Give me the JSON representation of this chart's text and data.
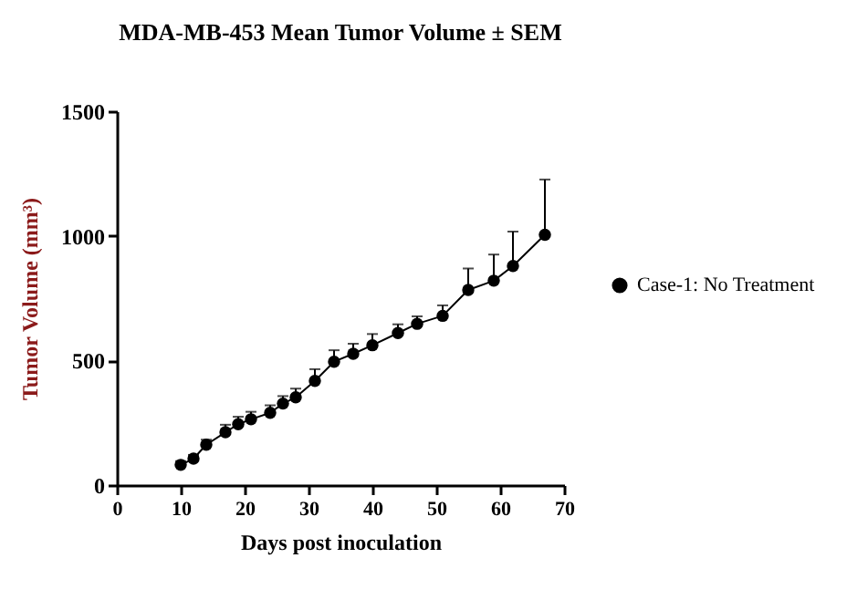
{
  "chart_data": {
    "type": "line",
    "title": "MDA-MB-453 Mean Tumor Volume ± SEM",
    "xlabel": "Days post inoculation",
    "ylabel": "Tumor Volume (mm³)",
    "x": [
      10,
      12,
      14,
      17,
      19,
      21,
      24,
      26,
      28,
      31,
      34,
      37,
      40,
      44,
      47,
      51,
      55,
      59,
      62,
      67
    ],
    "series": [
      {
        "name": "Case-1: No Treatment",
        "color": "#000000",
        "values": [
          81,
          106,
          162,
          212,
          244,
          264,
          290,
          327,
          352,
          418,
          495,
          527,
          561,
          610,
          647,
          679,
          783,
          820,
          879,
          1004
        ],
        "errors": [
          [
            81,
            96
          ],
          [
            106,
            121
          ],
          [
            162,
            182
          ],
          [
            212,
            242
          ],
          [
            244,
            274
          ],
          [
            264,
            294
          ],
          [
            290,
            320
          ],
          [
            327,
            357
          ],
          [
            352,
            387
          ],
          [
            418,
            465
          ],
          [
            495,
            541
          ],
          [
            527,
            567
          ],
          [
            561,
            606
          ],
          [
            610,
            645
          ],
          [
            647,
            677
          ],
          [
            679,
            721
          ],
          [
            783,
            869
          ],
          [
            820,
            925
          ],
          [
            879,
            1017
          ],
          [
            1004,
            1226
          ]
        ]
      }
    ],
    "xlim": [
      0,
      70
    ],
    "xticks": [
      0,
      10,
      20,
      30,
      40,
      50,
      60,
      70
    ],
    "ylim": [
      0,
      1500
    ],
    "yticks": [
      0,
      500,
      1000,
      1500
    ],
    "marker": "circle",
    "line_style": "solid",
    "legend": "right",
    "grid": false
  }
}
